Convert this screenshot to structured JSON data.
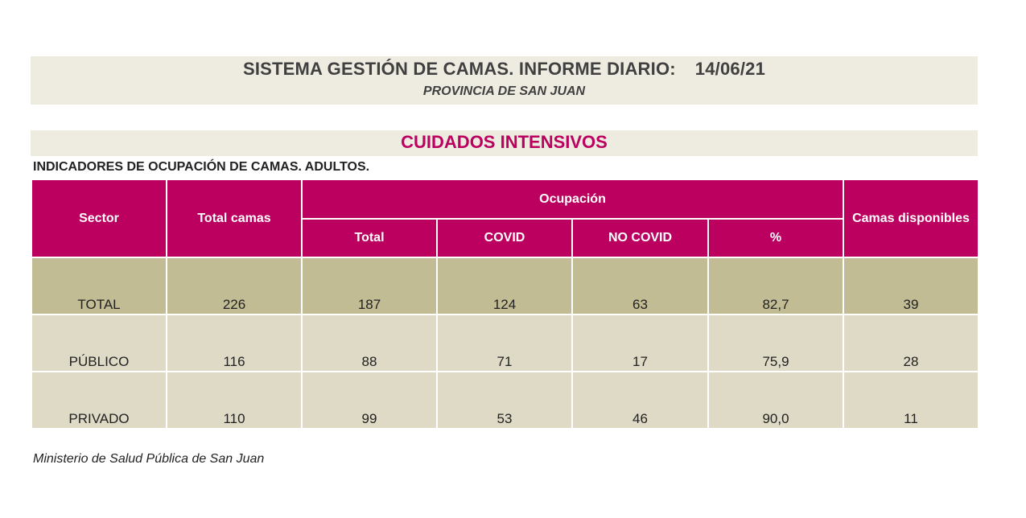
{
  "header": {
    "title": "SISTEMA GESTIÓN DE CAMAS. INFORME DIARIO:",
    "date": "14/06/21",
    "subtitle": "PROVINCIA DE SAN JUAN"
  },
  "section": {
    "title": "CUIDADOS INTENSIVOS",
    "subheading": "INDICADORES DE OCUPACIÓN DE CAMAS. ADULTOS."
  },
  "table": {
    "columns": {
      "sector": "Sector",
      "total_camas": "Total camas",
      "ocupacion": "Ocupación",
      "total": "Total",
      "covid": "COVID",
      "no_covid": "NO COVID",
      "pct": "%",
      "disponibles": "Camas disponibles"
    },
    "rows": [
      [
        "TOTAL",
        "226",
        "187",
        "124",
        "63",
        "82,7",
        "39"
      ],
      [
        "PÚBLICO",
        "116",
        "88",
        "71",
        "17",
        "75,9",
        "28"
      ],
      [
        "PRIVADO",
        "110",
        "99",
        "53",
        "46",
        "90,0",
        "11"
      ]
    ]
  },
  "footer": "Ministerio de Salud Pública de San Juan",
  "colors": {
    "accent": "#bb0060",
    "header_band": "#eeebe0",
    "total_row": "#c2bc95",
    "other_rows": "#dedac5"
  }
}
